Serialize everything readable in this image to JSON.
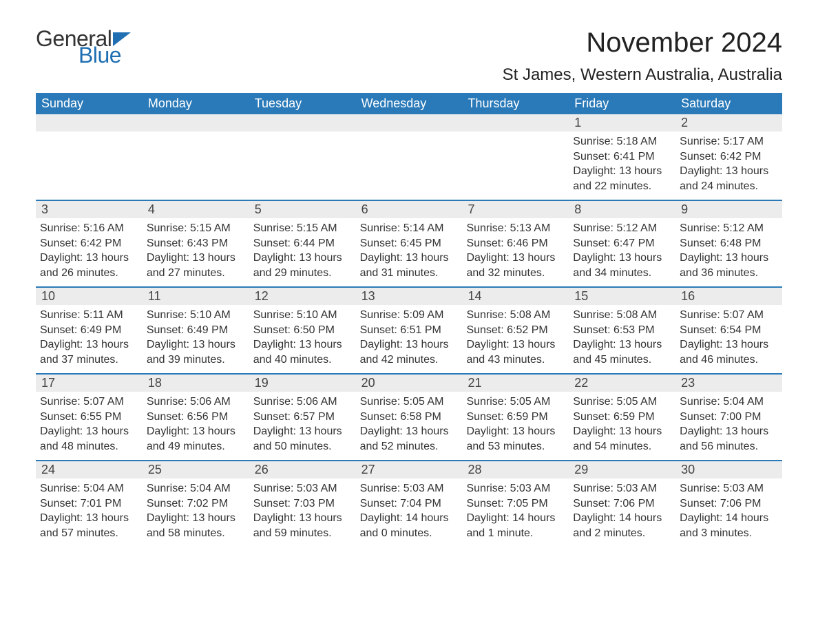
{
  "colors": {
    "header_bg": "#2a7ab9",
    "header_text": "#ffffff",
    "row_border": "#2a7ab9",
    "daynum_bg": "#ececec",
    "body_text": "#333333",
    "logo_blue": "#1f6fb2",
    "background": "#ffffff"
  },
  "typography": {
    "title_fontsize": 40,
    "location_fontsize": 24,
    "weekday_fontsize": 18,
    "daynum_fontsize": 18,
    "info_fontsize": 16,
    "logo_fontsize": 32
  },
  "logo": {
    "text1": "General",
    "text2": "Blue"
  },
  "title": "November 2024",
  "location": "St James, Western Australia, Australia",
  "weekdays": [
    "Sunday",
    "Monday",
    "Tuesday",
    "Wednesday",
    "Thursday",
    "Friday",
    "Saturday"
  ],
  "weeks": [
    [
      null,
      null,
      null,
      null,
      null,
      {
        "num": "1",
        "sunrise": "Sunrise: 5:18 AM",
        "sunset": "Sunset: 6:41 PM",
        "daylight": "Daylight: 13 hours and 22 minutes."
      },
      {
        "num": "2",
        "sunrise": "Sunrise: 5:17 AM",
        "sunset": "Sunset: 6:42 PM",
        "daylight": "Daylight: 13 hours and 24 minutes."
      }
    ],
    [
      {
        "num": "3",
        "sunrise": "Sunrise: 5:16 AM",
        "sunset": "Sunset: 6:42 PM",
        "daylight": "Daylight: 13 hours and 26 minutes."
      },
      {
        "num": "4",
        "sunrise": "Sunrise: 5:15 AM",
        "sunset": "Sunset: 6:43 PM",
        "daylight": "Daylight: 13 hours and 27 minutes."
      },
      {
        "num": "5",
        "sunrise": "Sunrise: 5:15 AM",
        "sunset": "Sunset: 6:44 PM",
        "daylight": "Daylight: 13 hours and 29 minutes."
      },
      {
        "num": "6",
        "sunrise": "Sunrise: 5:14 AM",
        "sunset": "Sunset: 6:45 PM",
        "daylight": "Daylight: 13 hours and 31 minutes."
      },
      {
        "num": "7",
        "sunrise": "Sunrise: 5:13 AM",
        "sunset": "Sunset: 6:46 PM",
        "daylight": "Daylight: 13 hours and 32 minutes."
      },
      {
        "num": "8",
        "sunrise": "Sunrise: 5:12 AM",
        "sunset": "Sunset: 6:47 PM",
        "daylight": "Daylight: 13 hours and 34 minutes."
      },
      {
        "num": "9",
        "sunrise": "Sunrise: 5:12 AM",
        "sunset": "Sunset: 6:48 PM",
        "daylight": "Daylight: 13 hours and 36 minutes."
      }
    ],
    [
      {
        "num": "10",
        "sunrise": "Sunrise: 5:11 AM",
        "sunset": "Sunset: 6:49 PM",
        "daylight": "Daylight: 13 hours and 37 minutes."
      },
      {
        "num": "11",
        "sunrise": "Sunrise: 5:10 AM",
        "sunset": "Sunset: 6:49 PM",
        "daylight": "Daylight: 13 hours and 39 minutes."
      },
      {
        "num": "12",
        "sunrise": "Sunrise: 5:10 AM",
        "sunset": "Sunset: 6:50 PM",
        "daylight": "Daylight: 13 hours and 40 minutes."
      },
      {
        "num": "13",
        "sunrise": "Sunrise: 5:09 AM",
        "sunset": "Sunset: 6:51 PM",
        "daylight": "Daylight: 13 hours and 42 minutes."
      },
      {
        "num": "14",
        "sunrise": "Sunrise: 5:08 AM",
        "sunset": "Sunset: 6:52 PM",
        "daylight": "Daylight: 13 hours and 43 minutes."
      },
      {
        "num": "15",
        "sunrise": "Sunrise: 5:08 AM",
        "sunset": "Sunset: 6:53 PM",
        "daylight": "Daylight: 13 hours and 45 minutes."
      },
      {
        "num": "16",
        "sunrise": "Sunrise: 5:07 AM",
        "sunset": "Sunset: 6:54 PM",
        "daylight": "Daylight: 13 hours and 46 minutes."
      }
    ],
    [
      {
        "num": "17",
        "sunrise": "Sunrise: 5:07 AM",
        "sunset": "Sunset: 6:55 PM",
        "daylight": "Daylight: 13 hours and 48 minutes."
      },
      {
        "num": "18",
        "sunrise": "Sunrise: 5:06 AM",
        "sunset": "Sunset: 6:56 PM",
        "daylight": "Daylight: 13 hours and 49 minutes."
      },
      {
        "num": "19",
        "sunrise": "Sunrise: 5:06 AM",
        "sunset": "Sunset: 6:57 PM",
        "daylight": "Daylight: 13 hours and 50 minutes."
      },
      {
        "num": "20",
        "sunrise": "Sunrise: 5:05 AM",
        "sunset": "Sunset: 6:58 PM",
        "daylight": "Daylight: 13 hours and 52 minutes."
      },
      {
        "num": "21",
        "sunrise": "Sunrise: 5:05 AM",
        "sunset": "Sunset: 6:59 PM",
        "daylight": "Daylight: 13 hours and 53 minutes."
      },
      {
        "num": "22",
        "sunrise": "Sunrise: 5:05 AM",
        "sunset": "Sunset: 6:59 PM",
        "daylight": "Daylight: 13 hours and 54 minutes."
      },
      {
        "num": "23",
        "sunrise": "Sunrise: 5:04 AM",
        "sunset": "Sunset: 7:00 PM",
        "daylight": "Daylight: 13 hours and 56 minutes."
      }
    ],
    [
      {
        "num": "24",
        "sunrise": "Sunrise: 5:04 AM",
        "sunset": "Sunset: 7:01 PM",
        "daylight": "Daylight: 13 hours and 57 minutes."
      },
      {
        "num": "25",
        "sunrise": "Sunrise: 5:04 AM",
        "sunset": "Sunset: 7:02 PM",
        "daylight": "Daylight: 13 hours and 58 minutes."
      },
      {
        "num": "26",
        "sunrise": "Sunrise: 5:03 AM",
        "sunset": "Sunset: 7:03 PM",
        "daylight": "Daylight: 13 hours and 59 minutes."
      },
      {
        "num": "27",
        "sunrise": "Sunrise: 5:03 AM",
        "sunset": "Sunset: 7:04 PM",
        "daylight": "Daylight: 14 hours and 0 minutes."
      },
      {
        "num": "28",
        "sunrise": "Sunrise: 5:03 AM",
        "sunset": "Sunset: 7:05 PM",
        "daylight": "Daylight: 14 hours and 1 minute."
      },
      {
        "num": "29",
        "sunrise": "Sunrise: 5:03 AM",
        "sunset": "Sunset: 7:06 PM",
        "daylight": "Daylight: 14 hours and 2 minutes."
      },
      {
        "num": "30",
        "sunrise": "Sunrise: 5:03 AM",
        "sunset": "Sunset: 7:06 PM",
        "daylight": "Daylight: 14 hours and 3 minutes."
      }
    ]
  ]
}
